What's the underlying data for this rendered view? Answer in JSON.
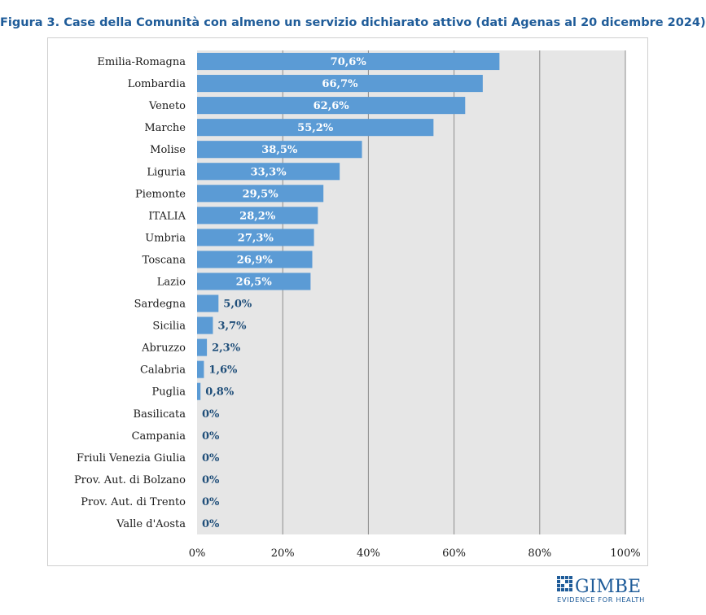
{
  "title": "Figura 3. Case della Comunità con almeno un servizio dichiarato attivo (dati Agenas al 20 dicembre 2024)",
  "colors": {
    "bar": "#5b9bd5",
    "plot_bg": "#e6e6e6",
    "title": "#1f5c99",
    "label_outside": "#1f4e79",
    "logo": "#1f5c99"
  },
  "logo": {
    "name": "GIMBE",
    "tagline": "EVIDENCE FOR HEALTH"
  },
  "chart_data": {
    "type": "bar",
    "orientation": "horizontal",
    "categories": [
      "Emilia-Romagna",
      "Lombardia",
      "Veneto",
      "Marche",
      "Molise",
      "Liguria",
      "Piemonte",
      "ITALIA",
      "Umbria",
      "Toscana",
      "Lazio",
      "Sardegna",
      "Sicilia",
      "Abruzzo",
      "Calabria",
      "Puglia",
      "Basilicata",
      "Campania",
      "Friuli Venezia Giulia",
      "Prov. Aut. di Bolzano",
      "Prov. Aut. di Trento",
      "Valle d'Aosta"
    ],
    "values": [
      70.6,
      66.7,
      62.6,
      55.2,
      38.5,
      33.3,
      29.5,
      28.2,
      27.3,
      26.9,
      26.5,
      5.0,
      3.7,
      2.3,
      1.6,
      0.8,
      0,
      0,
      0,
      0,
      0,
      0
    ],
    "data_labels": [
      "70,6%",
      "66,7%",
      "62,6%",
      "55,2%",
      "38,5%",
      "33,3%",
      "29,5%",
      "28,2%",
      "27,3%",
      "26,9%",
      "26,5%",
      "5,0%",
      "3,7%",
      "2,3%",
      "1,6%",
      "0,8%",
      "0%",
      "0%",
      "0%",
      "0%",
      "0%",
      "0%"
    ],
    "xlim": [
      0,
      100
    ],
    "x_ticks": [
      0,
      20,
      40,
      60,
      80,
      100
    ],
    "x_tick_labels": [
      "0%",
      "20%",
      "40%",
      "60%",
      "80%",
      "100%"
    ],
    "grid": "vertical",
    "legend": "none"
  }
}
